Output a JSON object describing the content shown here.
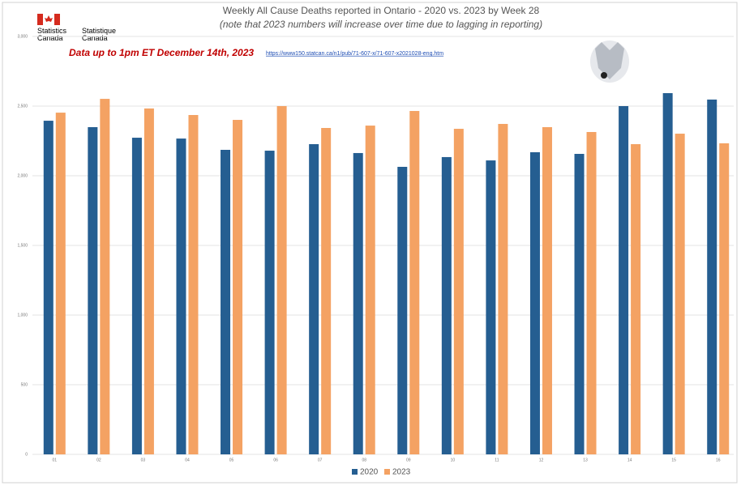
{
  "chart_data": {
    "type": "bar",
    "title": "Weekly All Cause Deaths reported in Ontario - 2020 vs. 2023 by Week 28",
    "subtitle": "(note that 2023 numbers will increase over time due to lagging in reporting)",
    "annotation": "Data up to 1pm ET December 14th, 2023",
    "source_url": "https://www150.statcan.ca/n1/pub/71-607-x/71-607-x2021028-eng.htm",
    "logo_en": "Statistics Canada",
    "logo_fr": "Statistique Canada",
    "categories": [
      "01",
      "02",
      "03",
      "04",
      "05",
      "06",
      "07",
      "08",
      "09",
      "10",
      "11",
      "12",
      "13",
      "14",
      "15",
      "16"
    ],
    "series": [
      {
        "name": "2020",
        "color": "#255e91",
        "values": [
          2395,
          2349,
          2273,
          2267,
          2186,
          2180,
          2227,
          2163,
          2064,
          2134,
          2110,
          2169,
          2157,
          2500,
          2593,
          2547
        ]
      },
      {
        "name": "2023",
        "color": "#f4a263",
        "values": [
          2453,
          2552,
          2483,
          2436,
          2401,
          2500,
          2343,
          2360,
          2465,
          2337,
          2372,
          2349,
          2314,
          2227,
          2302,
          2233
        ]
      }
    ],
    "ylim": [
      0,
      3000
    ],
    "yticks": [
      0,
      500,
      {
        "value": 1000,
        "label": "1,000"
      },
      {
        "value": 1500,
        "label": "1,500"
      },
      {
        "value": 2000,
        "label": "2,000"
      },
      {
        "value": 2500,
        "label": "2,500"
      },
      {
        "value": 3000,
        "label": "3,000"
      }
    ],
    "grid": true,
    "legend": "bottom"
  }
}
